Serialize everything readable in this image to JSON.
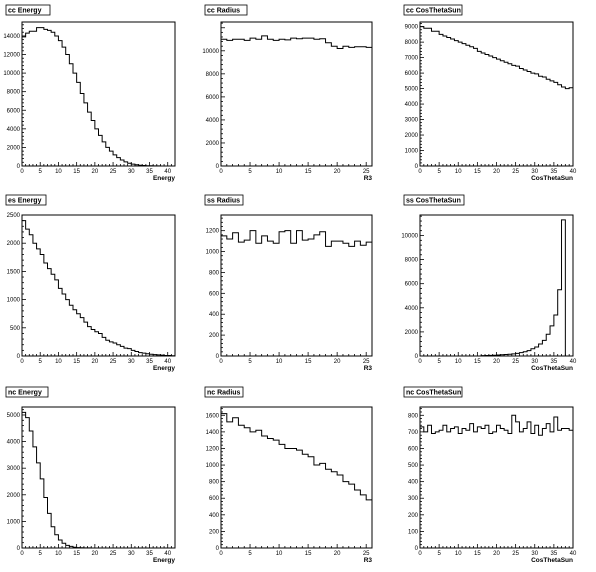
{
  "page": {
    "background": "#ffffff",
    "line_color": "#000000"
  },
  "chart_data": [
    {
      "type": "histogram",
      "title": "cc Energy",
      "xlabel": "Energy",
      "ylabel": "",
      "xlim": [
        0,
        42
      ],
      "ylim": [
        0,
        15500
      ],
      "xticks": [
        0,
        5,
        10,
        15,
        20,
        25,
        30,
        35,
        40
      ],
      "yticks": [
        0,
        2000,
        4000,
        6000,
        8000,
        10000,
        12000,
        14000
      ],
      "x_edges": [
        0,
        1,
        2,
        3,
        4,
        5,
        6,
        7,
        8,
        9,
        10,
        11,
        12,
        13,
        14,
        15,
        16,
        17,
        18,
        19,
        20,
        21,
        22,
        23,
        24,
        25,
        26,
        27,
        28,
        29,
        30,
        31,
        32,
        33,
        34,
        35,
        36,
        37,
        38,
        39,
        40,
        41,
        42
      ],
      "values": [
        13900,
        14300,
        14500,
        14500,
        14900,
        14900,
        14700,
        14600,
        14400,
        14000,
        13500,
        12800,
        12000,
        11000,
        10000,
        9000,
        7800,
        6800,
        5800,
        4900,
        4000,
        3300,
        2600,
        2000,
        1600,
        1200,
        900,
        650,
        450,
        300,
        200,
        130,
        80,
        50,
        30,
        20,
        12,
        8,
        5,
        3,
        2,
        1
      ]
    },
    {
      "type": "histogram",
      "title": "cc Radius",
      "xlabel": "R3",
      "ylabel": "",
      "xlim": [
        0,
        26
      ],
      "ylim": [
        0,
        12500
      ],
      "xticks": [
        0,
        5,
        10,
        15,
        20,
        25
      ],
      "yticks": [
        0,
        2000,
        4000,
        6000,
        8000,
        10000
      ],
      "x_edges": [
        0,
        1,
        2,
        3,
        4,
        5,
        6,
        7,
        8,
        9,
        10,
        11,
        12,
        13,
        14,
        15,
        16,
        17,
        18,
        19,
        20,
        21,
        22,
        23,
        24,
        25,
        26
      ],
      "values": [
        11000,
        10900,
        11000,
        11000,
        10900,
        11100,
        11000,
        11300,
        11000,
        10900,
        11000,
        10950,
        11100,
        11050,
        11100,
        11100,
        11000,
        11050,
        10700,
        10400,
        10200,
        10400,
        10300,
        10350,
        10350,
        10300
      ]
    },
    {
      "type": "histogram",
      "title": "cc CosThetaSun",
      "xlabel": "CosThetaSun",
      "ylabel": "",
      "xlim": [
        0,
        40
      ],
      "ylim": [
        0,
        9300
      ],
      "xticks": [
        0,
        5,
        10,
        15,
        20,
        25,
        30,
        35,
        40
      ],
      "yticks": [
        0,
        1000,
        2000,
        3000,
        4000,
        5000,
        6000,
        7000,
        8000,
        9000
      ],
      "x_edges": [
        0,
        1,
        2,
        3,
        4,
        5,
        6,
        7,
        8,
        9,
        10,
        11,
        12,
        13,
        14,
        15,
        16,
        17,
        18,
        19,
        20,
        21,
        22,
        23,
        24,
        25,
        26,
        27,
        28,
        29,
        30,
        31,
        32,
        33,
        34,
        35,
        36,
        37,
        38,
        39,
        40
      ],
      "values": [
        9000,
        8900,
        8900,
        8700,
        8700,
        8500,
        8400,
        8300,
        8200,
        8100,
        8000,
        7900,
        7800,
        7700,
        7600,
        7400,
        7300,
        7200,
        7100,
        7000,
        6900,
        6800,
        6700,
        6600,
        6500,
        6450,
        6300,
        6200,
        6100,
        6000,
        5950,
        5800,
        5750,
        5600,
        5500,
        5400,
        5250,
        5100,
        5000,
        5050
      ]
    },
    {
      "type": "histogram",
      "title": "es Energy",
      "xlabel": "Energy",
      "ylabel": "",
      "xlim": [
        0,
        42
      ],
      "ylim": [
        0,
        2500
      ],
      "xticks": [
        0,
        5,
        10,
        15,
        20,
        25,
        30,
        35,
        40
      ],
      "yticks": [
        0,
        500,
        1000,
        1500,
        2000,
        2500
      ],
      "x_edges": [
        0,
        1,
        2,
        3,
        4,
        5,
        6,
        7,
        8,
        9,
        10,
        11,
        12,
        13,
        14,
        15,
        16,
        17,
        18,
        19,
        20,
        21,
        22,
        23,
        24,
        25,
        26,
        27,
        28,
        29,
        30,
        31,
        32,
        33,
        34,
        35,
        36,
        37,
        38,
        39,
        40,
        41,
        42
      ],
      "values": [
        2400,
        2250,
        2150,
        2000,
        1900,
        1800,
        1650,
        1550,
        1450,
        1350,
        1200,
        1100,
        1000,
        900,
        820,
        750,
        680,
        600,
        520,
        470,
        430,
        400,
        330,
        280,
        250,
        230,
        200,
        170,
        140,
        130,
        100,
        80,
        60,
        50,
        40,
        30,
        25,
        20,
        15,
        10,
        8,
        5
      ]
    },
    {
      "type": "histogram",
      "title": "ss Radius",
      "xlabel": "R3",
      "ylabel": "",
      "xlim": [
        0,
        26
      ],
      "ylim": [
        0,
        1350
      ],
      "xticks": [
        0,
        5,
        10,
        15,
        20,
        25
      ],
      "yticks": [
        0,
        200,
        400,
        600,
        800,
        1000,
        1200
      ],
      "x_edges": [
        0,
        1,
        2,
        3,
        4,
        5,
        6,
        7,
        8,
        9,
        10,
        11,
        12,
        13,
        14,
        15,
        16,
        17,
        18,
        19,
        20,
        21,
        22,
        23,
        24,
        25,
        26
      ],
      "values": [
        1150,
        1120,
        1180,
        1090,
        1110,
        1200,
        1080,
        1150,
        1100,
        1080,
        1190,
        1200,
        1080,
        1200,
        1110,
        1120,
        1160,
        1190,
        1050,
        1100,
        1100,
        1080,
        1050,
        1100,
        1060,
        1090
      ]
    },
    {
      "type": "histogram",
      "title": "ss CosThetaSun",
      "xlabel": "CosThetaSun",
      "ylabel": "",
      "xlim": [
        0,
        40
      ],
      "ylim": [
        0,
        11700
      ],
      "xticks": [
        0,
        5,
        10,
        15,
        20,
        25,
        30,
        35,
        40
      ],
      "yticks": [
        0,
        2000,
        4000,
        6000,
        8000,
        10000
      ],
      "x_edges": [
        0,
        1,
        2,
        3,
        4,
        5,
        6,
        7,
        8,
        9,
        10,
        11,
        12,
        13,
        14,
        15,
        16,
        17,
        18,
        19,
        20,
        21,
        22,
        23,
        24,
        25,
        26,
        27,
        28,
        29,
        30,
        31,
        32,
        33,
        34,
        35,
        36,
        37,
        38,
        39,
        40
      ],
      "values": [
        0,
        0,
        0,
        0,
        0,
        0,
        0,
        0,
        0,
        0,
        0,
        0,
        0,
        0,
        0,
        0,
        30,
        40,
        50,
        60,
        80,
        100,
        120,
        150,
        180,
        220,
        280,
        350,
        450,
        600,
        750,
        1000,
        1300,
        1800,
        2500,
        3400,
        5500,
        11300,
        0,
        0
      ]
    },
    {
      "type": "histogram",
      "title": "nc Energy",
      "xlabel": "Energy",
      "ylabel": "",
      "xlim": [
        0,
        42
      ],
      "ylim": [
        0,
        5300
      ],
      "xticks": [
        0,
        5,
        10,
        15,
        20,
        25,
        30,
        35,
        40
      ],
      "yticks": [
        0,
        1000,
        2000,
        3000,
        4000,
        5000
      ],
      "x_edges": [
        0,
        1,
        2,
        3,
        4,
        5,
        6,
        7,
        8,
        9,
        10,
        11,
        12,
        13,
        14,
        15,
        16,
        17,
        18,
        19,
        20,
        21,
        22,
        23,
        24,
        25,
        26,
        27,
        28,
        29,
        30,
        31,
        32,
        33,
        34,
        35,
        36,
        37,
        38,
        39,
        40,
        41,
        42
      ],
      "values": [
        5100,
        4900,
        4400,
        3800,
        3200,
        2600,
        1900,
        1300,
        800,
        500,
        300,
        180,
        100,
        60,
        30,
        15,
        8,
        5,
        3,
        2,
        1,
        0,
        0,
        0,
        0,
        0,
        0,
        0,
        0,
        0,
        0,
        0,
        0,
        0,
        0,
        0,
        0,
        0,
        0,
        0,
        0,
        0
      ]
    },
    {
      "type": "histogram",
      "title": "nc Radius",
      "xlabel": "R3",
      "ylabel": "",
      "xlim": [
        0,
        26
      ],
      "ylim": [
        0,
        1700
      ],
      "xticks": [
        0,
        5,
        10,
        15,
        20,
        25
      ],
      "yticks": [
        0,
        200,
        400,
        600,
        800,
        1000,
        1200,
        1400,
        1600
      ],
      "x_edges": [
        0,
        1,
        2,
        3,
        4,
        5,
        6,
        7,
        8,
        9,
        10,
        11,
        12,
        13,
        14,
        15,
        16,
        17,
        18,
        19,
        20,
        21,
        22,
        23,
        24,
        25,
        26
      ],
      "values": [
        1620,
        1520,
        1570,
        1480,
        1450,
        1400,
        1420,
        1350,
        1320,
        1300,
        1250,
        1200,
        1200,
        1180,
        1130,
        1100,
        1000,
        1020,
        950,
        920,
        880,
        800,
        770,
        700,
        640,
        580
      ]
    },
    {
      "type": "histogram",
      "title": "nc CosThetaSun",
      "xlabel": "CosThetaSun",
      "ylabel": "",
      "xlim": [
        0,
        40
      ],
      "ylim": [
        0,
        850
      ],
      "xticks": [
        0,
        5,
        10,
        15,
        20,
        25,
        30,
        35,
        40
      ],
      "yticks": [
        0,
        100,
        200,
        300,
        400,
        500,
        600,
        700,
        800
      ],
      "x_edges": [
        0,
        1,
        2,
        3,
        4,
        5,
        6,
        7,
        8,
        9,
        10,
        11,
        12,
        13,
        14,
        15,
        16,
        17,
        18,
        19,
        20,
        21,
        22,
        23,
        24,
        25,
        26,
        27,
        28,
        29,
        30,
        31,
        32,
        33,
        34,
        35,
        36,
        37,
        38,
        39,
        40
      ],
      "values": [
        730,
        700,
        740,
        690,
        700,
        710,
        740,
        700,
        720,
        730,
        690,
        720,
        710,
        750,
        700,
        730,
        720,
        740,
        690,
        700,
        740,
        720,
        710,
        690,
        800,
        760,
        700,
        720,
        760,
        690,
        740,
        680,
        720,
        750,
        700,
        790,
        710,
        720,
        720,
        710
      ]
    }
  ]
}
